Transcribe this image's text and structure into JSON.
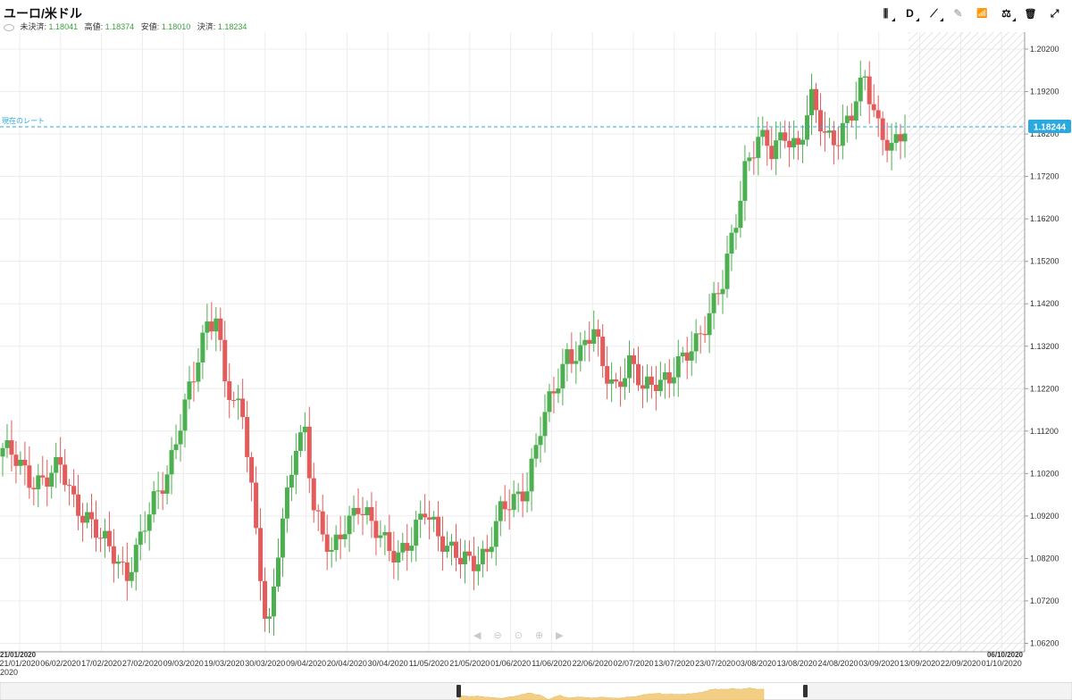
{
  "header": {
    "title": "ユーロ/米ドル",
    "ohlc": [
      {
        "label": "未決済:",
        "value": "1.18041"
      },
      {
        "label": "高値:",
        "value": "1.18374"
      },
      {
        "label": "安値:",
        "value": "1.18010"
      },
      {
        "label": "決済:",
        "value": "1.18234"
      }
    ]
  },
  "toolbar": {
    "items": [
      {
        "name": "candlestick-icon",
        "glyph": "⫼",
        "enabled": true
      },
      {
        "name": "period-selector",
        "glyph": "D",
        "enabled": true
      },
      {
        "name": "drawing-icon",
        "glyph": "⟋",
        "enabled": true
      },
      {
        "name": "pencil-icon",
        "glyph": "✎",
        "enabled": false
      },
      {
        "name": "indicator-icon",
        "glyph": "📶",
        "enabled": true
      },
      {
        "name": "compare-icon",
        "glyph": "⚖",
        "enabled": true
      },
      {
        "name": "trash-icon",
        "glyph": "🗑",
        "enabled": true
      },
      {
        "name": "fullscreen-icon",
        "glyph": "⤢",
        "enabled": true
      }
    ]
  },
  "current_rate": {
    "label": "現在のレート",
    "value": "1.18244",
    "color": "#2aa8e0"
  },
  "colors": {
    "up": "#4caf50",
    "down": "#e45b5b",
    "grid": "#ececec",
    "navigator": "#f3cf86"
  },
  "range": {
    "start": "21/01/2020",
    "end": "06/10/2020"
  },
  "chart_data": {
    "type": "candlestick",
    "y_ticks": [
      "1.20200",
      "1.19200",
      "1.18200",
      "1.17200",
      "1.16200",
      "1.15200",
      "1.14200",
      "1.13200",
      "1.12200",
      "1.11200",
      "1.10200",
      "1.09200",
      "1.08200",
      "1.07200",
      "1.06200"
    ],
    "ylim": [
      1.06,
      1.206
    ],
    "x_ticks": [
      "21/01/2020",
      "06/02/2020",
      "17/02/2020",
      "27/02/2020",
      "09/03/2020",
      "19/03/2020",
      "30/03/2020",
      "09/04/2020",
      "20/04/2020",
      "30/04/2020",
      "11/05/2020",
      "21/05/2020",
      "01/06/2020",
      "11/06/2020",
      "22/06/2020",
      "02/07/2020",
      "13/07/2020",
      "23/07/2020",
      "03/08/2020",
      "13/08/2020",
      "24/08/2020",
      "03/09/2020",
      "13/09/2020",
      "22/09/2020",
      "01/10/2020"
    ],
    "x_ticks_continued": "2020",
    "series": [
      {
        "name": "EUR/USD",
        "waypoints": [
          [
            0,
            1.108
          ],
          [
            6,
            1.101
          ],
          [
            10,
            1.101
          ],
          [
            13,
            1.103
          ],
          [
            16,
            1.096
          ],
          [
            19,
            1.092
          ],
          [
            22,
            1.086
          ],
          [
            25,
            1.083
          ],
          [
            28,
            1.079
          ],
          [
            31,
            1.086
          ],
          [
            34,
            1.095
          ],
          [
            37,
            1.103
          ],
          [
            40,
            1.114
          ],
          [
            43,
            1.124
          ],
          [
            46,
            1.138
          ],
          [
            48,
            1.14
          ],
          [
            50,
            1.124
          ],
          [
            52,
            1.117
          ],
          [
            54,
            1.116
          ],
          [
            56,
            1.099
          ],
          [
            58,
            1.08
          ],
          [
            59,
            1.069
          ],
          [
            60,
            1.066
          ],
          [
            62,
            1.083
          ],
          [
            64,
            1.096
          ],
          [
            66,
            1.11
          ],
          [
            68,
            1.113
          ],
          [
            70,
            1.094
          ],
          [
            72,
            1.086
          ],
          [
            74,
            1.083
          ],
          [
            77,
            1.091
          ],
          [
            80,
            1.094
          ],
          [
            83,
            1.089
          ],
          [
            86,
            1.087
          ],
          [
            89,
            1.083
          ],
          [
            92,
            1.085
          ],
          [
            95,
            1.094
          ],
          [
            97,
            1.091
          ],
          [
            100,
            1.084
          ],
          [
            103,
            1.081
          ],
          [
            106,
            1.082
          ],
          [
            109,
            1.084
          ],
          [
            112,
            1.092
          ],
          [
            115,
            1.096
          ],
          [
            118,
            1.1
          ],
          [
            121,
            1.112
          ],
          [
            124,
            1.121
          ],
          [
            127,
            1.131
          ],
          [
            130,
            1.13
          ],
          [
            133,
            1.135
          ],
          [
            135,
            1.128
          ],
          [
            138,
            1.123
          ],
          [
            141,
            1.127
          ],
          [
            144,
            1.122
          ],
          [
            147,
            1.125
          ],
          [
            150,
            1.124
          ],
          [
            153,
            1.128
          ],
          [
            156,
            1.134
          ],
          [
            159,
            1.14
          ],
          [
            162,
            1.146
          ],
          [
            165,
            1.162
          ],
          [
            167,
            1.175
          ],
          [
            170,
            1.181
          ],
          [
            173,
            1.177
          ],
          [
            176,
            1.183
          ],
          [
            179,
            1.179
          ],
          [
            182,
            1.189
          ],
          [
            185,
            1.182
          ],
          [
            188,
            1.182
          ],
          [
            191,
            1.186
          ],
          [
            194,
            1.195
          ],
          [
            197,
            1.185
          ],
          [
            200,
            1.178
          ],
          [
            203,
            1.182
          ]
        ]
      }
    ]
  }
}
